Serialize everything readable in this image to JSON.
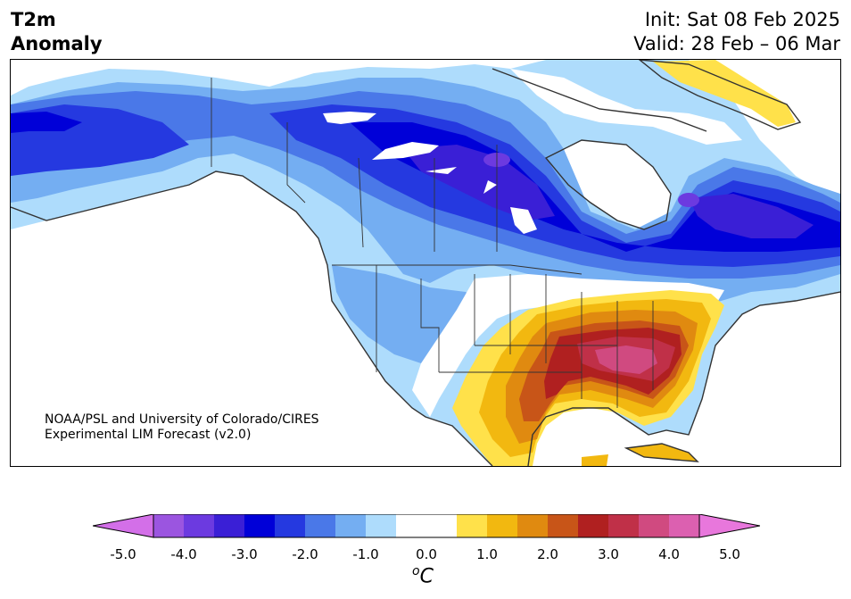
{
  "title": {
    "left_line1": "T2m",
    "left_line2": "Anomaly",
    "init": "Init: Sat 08 Feb 2025",
    "valid": "Valid: 28 Feb – 06 Mar"
  },
  "credit": {
    "line1": "NOAA/PSL and University of Colorado/CIRES",
    "line2": "Experimental LIM Forecast (v2.0)"
  },
  "colorbar": {
    "unit_base": "C",
    "unit_sup": "o",
    "ticks": [
      "-5.0",
      "-4.0",
      "-3.0",
      "-2.0",
      "-1.0",
      "0.0",
      "1.0",
      "2.0",
      "3.0",
      "4.0",
      "5.0"
    ],
    "colors": {
      "lt_-4.5": "#d36fe8",
      "-4.5_-4.0": "#9b55e0",
      "-4.0_-3.5": "#6c3ae0",
      "-3.5_-3.0": "#3a1fd6",
      "-3.0_-2.5": "#0000d8",
      "-2.5_-2.0": "#2539e0",
      "-2.0_-1.5": "#4a78e8",
      "-1.5_-1.0": "#74aef2",
      "-1.0_-0.5": "#aedcfc",
      "-0.5_0.5": "#ffffff",
      "0.5_1.0": "#ffe14a",
      "1.0_1.5": "#f2b810",
      "1.5_2.0": "#e08a10",
      "2.0_2.5": "#c85518",
      "2.5_3.0": "#b02020",
      "3.0_3.5": "#c03048",
      "3.5_4.0": "#d04a80",
      "4.0_4.5": "#dc60b0",
      "gt_4.5": "#e877dc"
    }
  }
}
